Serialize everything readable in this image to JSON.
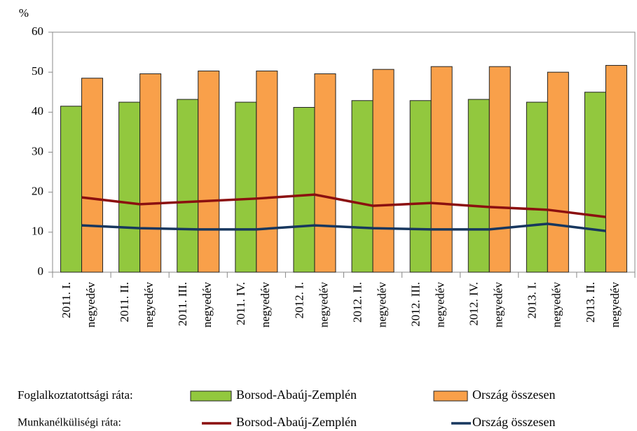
{
  "chart_data": {
    "type": "combo",
    "ylabel": "%",
    "categories": [
      [
        "2011. I.",
        "negyedév"
      ],
      [
        "2011. II.",
        "negyedév"
      ],
      [
        "2011. III.",
        "negyedév"
      ],
      [
        "2011. IV.",
        "negyedév"
      ],
      [
        "2012. I.",
        "negyedév"
      ],
      [
        "2012. II.",
        "negyedév"
      ],
      [
        "2012. III.",
        "negyedév"
      ],
      [
        "2012. IV.",
        "negyedév"
      ],
      [
        "2013. I.",
        "negyedév"
      ],
      [
        "2013. II.",
        "negyedév"
      ]
    ],
    "ylim": [
      0,
      60
    ],
    "yticks": [
      0,
      10,
      20,
      30,
      40,
      50,
      60
    ],
    "grid": false,
    "legend": "bottom",
    "groups": [
      {
        "title": "Foglalkoztatottsági ráta:",
        "type": "bar",
        "series": [
          {
            "name": "Borsod-Abaúj-Zemplén",
            "color": "#92c83e",
            "values": [
              41.5,
              42.5,
              43.2,
              42.5,
              41.2,
              42.9,
              42.9,
              43.2,
              42.5,
              45.0
            ]
          },
          {
            "name": "Ország összesen",
            "color": "#f9a04a",
            "values": [
              48.5,
              49.6,
              50.3,
              50.3,
              49.6,
              50.7,
              51.4,
              51.4,
              50.0,
              51.7
            ]
          }
        ]
      },
      {
        "title": "Munkanélküliségi ráta:",
        "type": "line",
        "series": [
          {
            "name": "Borsod-Abaúj-Zemplén",
            "color": "#8b1010",
            "values": [
              18.7,
              17.0,
              17.7,
              18.4,
              19.4,
              16.6,
              17.3,
              16.3,
              15.6,
              13.8
            ]
          },
          {
            "name": "Ország összesen",
            "color": "#17375e",
            "values": [
              11.7,
              11.0,
              10.7,
              10.7,
              11.7,
              11.0,
              10.7,
              10.7,
              12.1,
              10.3
            ]
          }
        ]
      }
    ]
  }
}
